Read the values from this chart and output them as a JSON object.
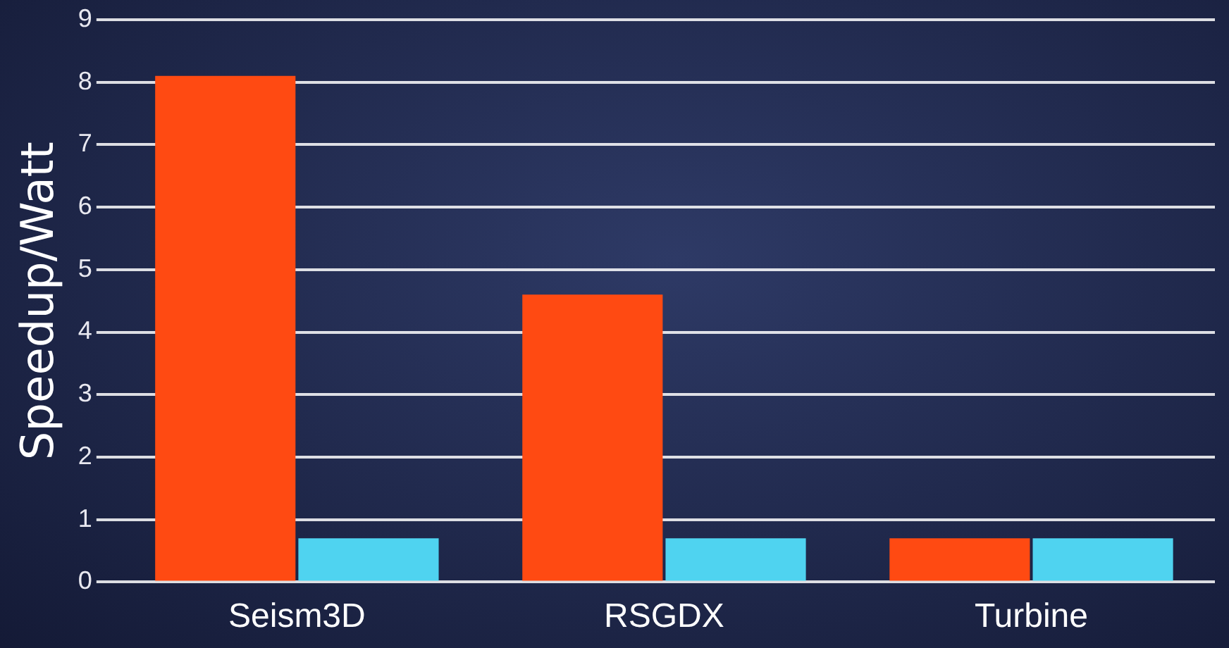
{
  "chart_data": {
    "type": "bar",
    "ylabel": "Speedup/Watt",
    "categories": [
      "Seism3D",
      "RSGDX",
      "Turbine"
    ],
    "series": [
      {
        "color": "#ff4a12",
        "values": [
          8.1,
          4.6,
          0.7
        ]
      },
      {
        "color": "#4fd3f0",
        "values": [
          0.7,
          0.7,
          0.7
        ]
      }
    ],
    "ylim": [
      0,
      9
    ],
    "yticks": [
      0,
      1,
      2,
      3,
      4,
      5,
      6,
      7,
      8,
      9
    ],
    "grid": "y",
    "legend": false
  }
}
